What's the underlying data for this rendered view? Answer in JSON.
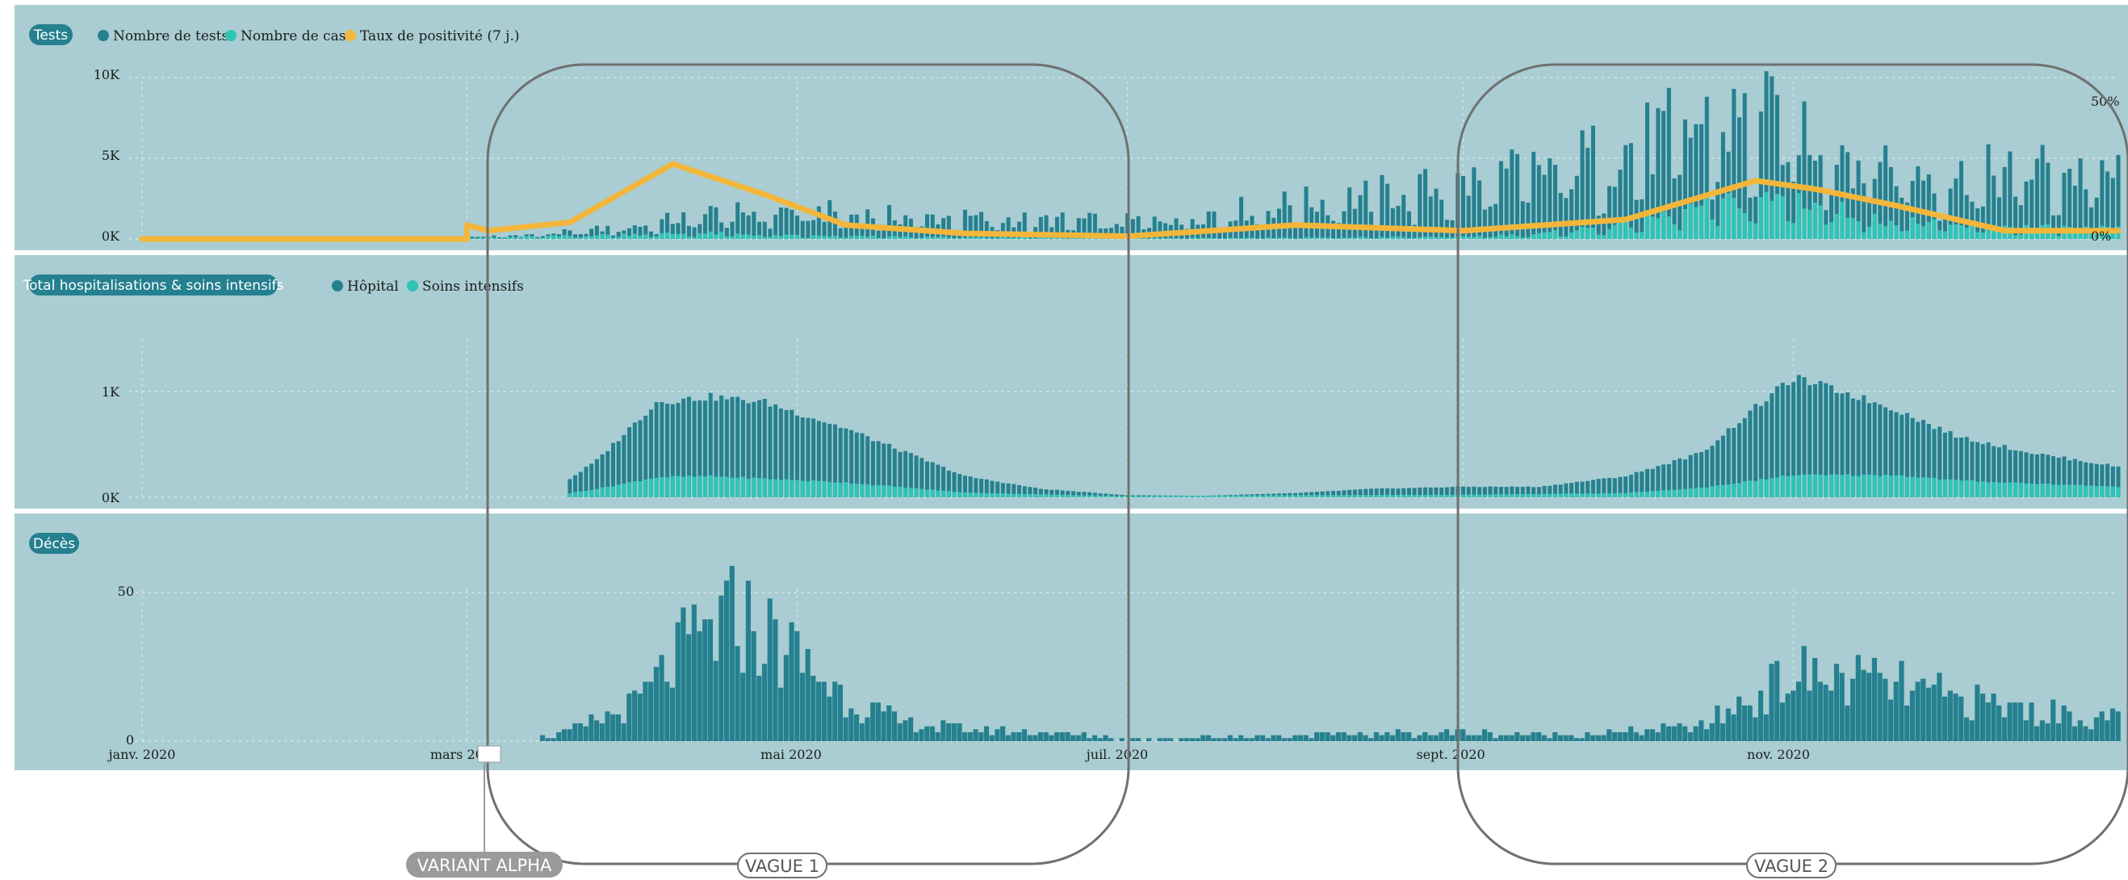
{
  "colors": {
    "panel_bg": "#a9cdd2",
    "tests": "#25808f",
    "cases": "#2ec4b6",
    "positivity": "#f3b63a",
    "hospital": "#25808f",
    "icu": "#2ec4b6",
    "deaths": "#25808f",
    "annotation_line": "#707070",
    "variant_pill": "#9a9a9a"
  },
  "x_axis": {
    "ticks": [
      {
        "date": "2020-01-01",
        "label": "janv. 2020"
      },
      {
        "date": "2020-03-01",
        "label": "mars 2020"
      },
      {
        "date": "2020-05-01",
        "label": "mai 2020"
      },
      {
        "date": "2020-07-01",
        "label": "juil. 2020"
      },
      {
        "date": "2020-09-01",
        "label": "sept. 2020"
      },
      {
        "date": "2020-11-01",
        "label": "nov. 2020"
      }
    ]
  },
  "panels": {
    "tests": {
      "title": "Tests",
      "legend": [
        {
          "label": "Nombre de tests",
          "color": "#25808f"
        },
        {
          "label": "Nombre de cas",
          "color": "#2ec4b6"
        },
        {
          "label": "Taux de positivité (7 j.)",
          "color": "#f3b63a"
        }
      ],
      "y_ticks": [
        "0K",
        "5K",
        "10K"
      ],
      "y2_ticks": [
        "0%",
        "50%"
      ]
    },
    "hosp": {
      "title": "Total hospitalisations & soins intensifs",
      "legend": [
        {
          "label": "Hôpital",
          "color": "#25808f"
        },
        {
          "label": "Soins intensifs",
          "color": "#2ec4b6"
        }
      ],
      "y_ticks": [
        "0K",
        "1K"
      ]
    },
    "deaths": {
      "title": "Décès",
      "y_ticks": [
        "0",
        "50"
      ]
    }
  },
  "annotations": {
    "variant": {
      "label": "VARIANT ALPHA",
      "date": "2020-03-08"
    },
    "wave1": {
      "label": "VAGUE 1",
      "start": "2020-03-05",
      "end": "2020-07-01"
    },
    "wave2": {
      "label": "VAGUE 2",
      "start": "2020-09-01",
      "end": "2020-12-31"
    }
  },
  "chart_data": [
    {
      "type": "bar",
      "title": "Tests",
      "x_range": [
        "2020-01-01",
        "2020-12-31"
      ],
      "ylim": [
        0,
        11000
      ],
      "y2lim": [
        0,
        60
      ],
      "y2_unit": "%",
      "grid": true,
      "legend_position": "top-left",
      "series": [
        {
          "name": "Nombre de tests",
          "kind": "bar",
          "x": [
            "2020-03-01",
            "2020-03-15",
            "2020-04-01",
            "2020-04-15",
            "2020-05-01",
            "2020-05-15",
            "2020-06-01",
            "2020-06-15",
            "2020-07-01",
            "2020-07-15",
            "2020-08-01",
            "2020-08-15",
            "2020-09-01",
            "2020-09-15",
            "2020-10-01",
            "2020-10-15",
            "2020-11-01",
            "2020-11-15",
            "2020-12-01",
            "2020-12-15",
            "2020-12-31"
          ],
          "values": [
            100,
            300,
            800,
            1600,
            1800,
            1500,
            1300,
            1200,
            1100,
            1600,
            2200,
            2700,
            3400,
            4300,
            5600,
            7200,
            7400,
            5200,
            3800,
            4400,
            4000
          ]
        },
        {
          "name": "Nombre de cas",
          "kind": "bar",
          "x": [
            "2020-03-01",
            "2020-03-15",
            "2020-04-01",
            "2020-04-15",
            "2020-05-01",
            "2020-06-01",
            "2020-07-01",
            "2020-08-01",
            "2020-09-01",
            "2020-09-15",
            "2020-10-01",
            "2020-10-15",
            "2020-11-01",
            "2020-11-15",
            "2020-12-01",
            "2020-12-15",
            "2020-12-31"
          ],
          "values": [
            50,
            150,
            300,
            350,
            200,
            100,
            60,
            80,
            150,
            300,
            900,
            2000,
            2600,
            1300,
            800,
            700,
            600
          ]
        },
        {
          "name": "Taux de positivité (7 j.)",
          "kind": "line",
          "x": [
            "2020-01-01",
            "2020-03-01",
            "2020-03-01",
            "2020-03-05",
            "2020-03-20",
            "2020-04-08",
            "2020-04-25",
            "2020-05-10",
            "2020-06-01",
            "2020-07-01",
            "2020-08-01",
            "2020-09-01",
            "2020-10-01",
            "2020-10-25",
            "2020-11-05",
            "2020-11-20",
            "2020-12-10",
            "2020-12-31"
          ],
          "values": [
            0,
            0,
            5,
            3,
            6,
            27,
            16,
            5,
            2,
            1,
            5,
            3,
            7,
            21,
            18,
            12,
            3,
            3
          ]
        }
      ]
    },
    {
      "type": "bar",
      "title": "Total hospitalisations & soins intensifs",
      "x_range": [
        "2020-01-01",
        "2020-12-31"
      ],
      "ylim": [
        0,
        1500
      ],
      "grid": true,
      "legend_position": "top-left",
      "series": [
        {
          "name": "Hôpital",
          "x": [
            "2020-03-15",
            "2020-03-25",
            "2020-04-05",
            "2020-04-15",
            "2020-04-25",
            "2020-05-10",
            "2020-06-01",
            "2020-06-15",
            "2020-07-01",
            "2020-07-15",
            "2020-08-01",
            "2020-08-15",
            "2020-09-01",
            "2020-09-15",
            "2020-10-01",
            "2020-10-15",
            "2020-10-25",
            "2020-11-01",
            "2020-11-10",
            "2020-11-20",
            "2020-12-01",
            "2020-12-15",
            "2020-12-31"
          ],
          "values": [
            0,
            350,
            900,
            950,
            900,
            650,
            200,
            80,
            20,
            15,
            40,
            80,
            100,
            100,
            200,
            420,
            850,
            1130,
            1000,
            830,
            580,
            420,
            290
          ]
        },
        {
          "name": "Soins intensifs",
          "x": [
            "2020-03-15",
            "2020-03-25",
            "2020-04-05",
            "2020-04-15",
            "2020-05-10",
            "2020-06-01",
            "2020-07-01",
            "2020-08-01",
            "2020-09-01",
            "2020-10-01",
            "2020-10-15",
            "2020-11-01",
            "2020-11-20",
            "2020-12-01",
            "2020-12-31"
          ],
          "values": [
            0,
            80,
            190,
            200,
            140,
            45,
            10,
            20,
            25,
            40,
            90,
            210,
            210,
            160,
            100
          ]
        }
      ]
    },
    {
      "type": "bar",
      "title": "Décès",
      "x_range": [
        "2020-01-01",
        "2020-12-31"
      ],
      "ylim": [
        0,
        60
      ],
      "grid": true,
      "series": [
        {
          "name": "Décès",
          "x": [
            "2020-03-10",
            "2020-03-20",
            "2020-04-01",
            "2020-04-10",
            "2020-04-20",
            "2020-05-01",
            "2020-05-10",
            "2020-05-20",
            "2020-06-01",
            "2020-06-15",
            "2020-07-01",
            "2020-08-01",
            "2020-09-01",
            "2020-09-15",
            "2020-10-01",
            "2020-10-15",
            "2020-11-01",
            "2020-11-15",
            "2020-12-01",
            "2020-12-15",
            "2020-12-31"
          ],
          "values": [
            0,
            3,
            12,
            30,
            42,
            28,
            15,
            6,
            4,
            3,
            1,
            2,
            3,
            2,
            3,
            5,
            22,
            20,
            14,
            10,
            7
          ]
        }
      ]
    }
  ]
}
